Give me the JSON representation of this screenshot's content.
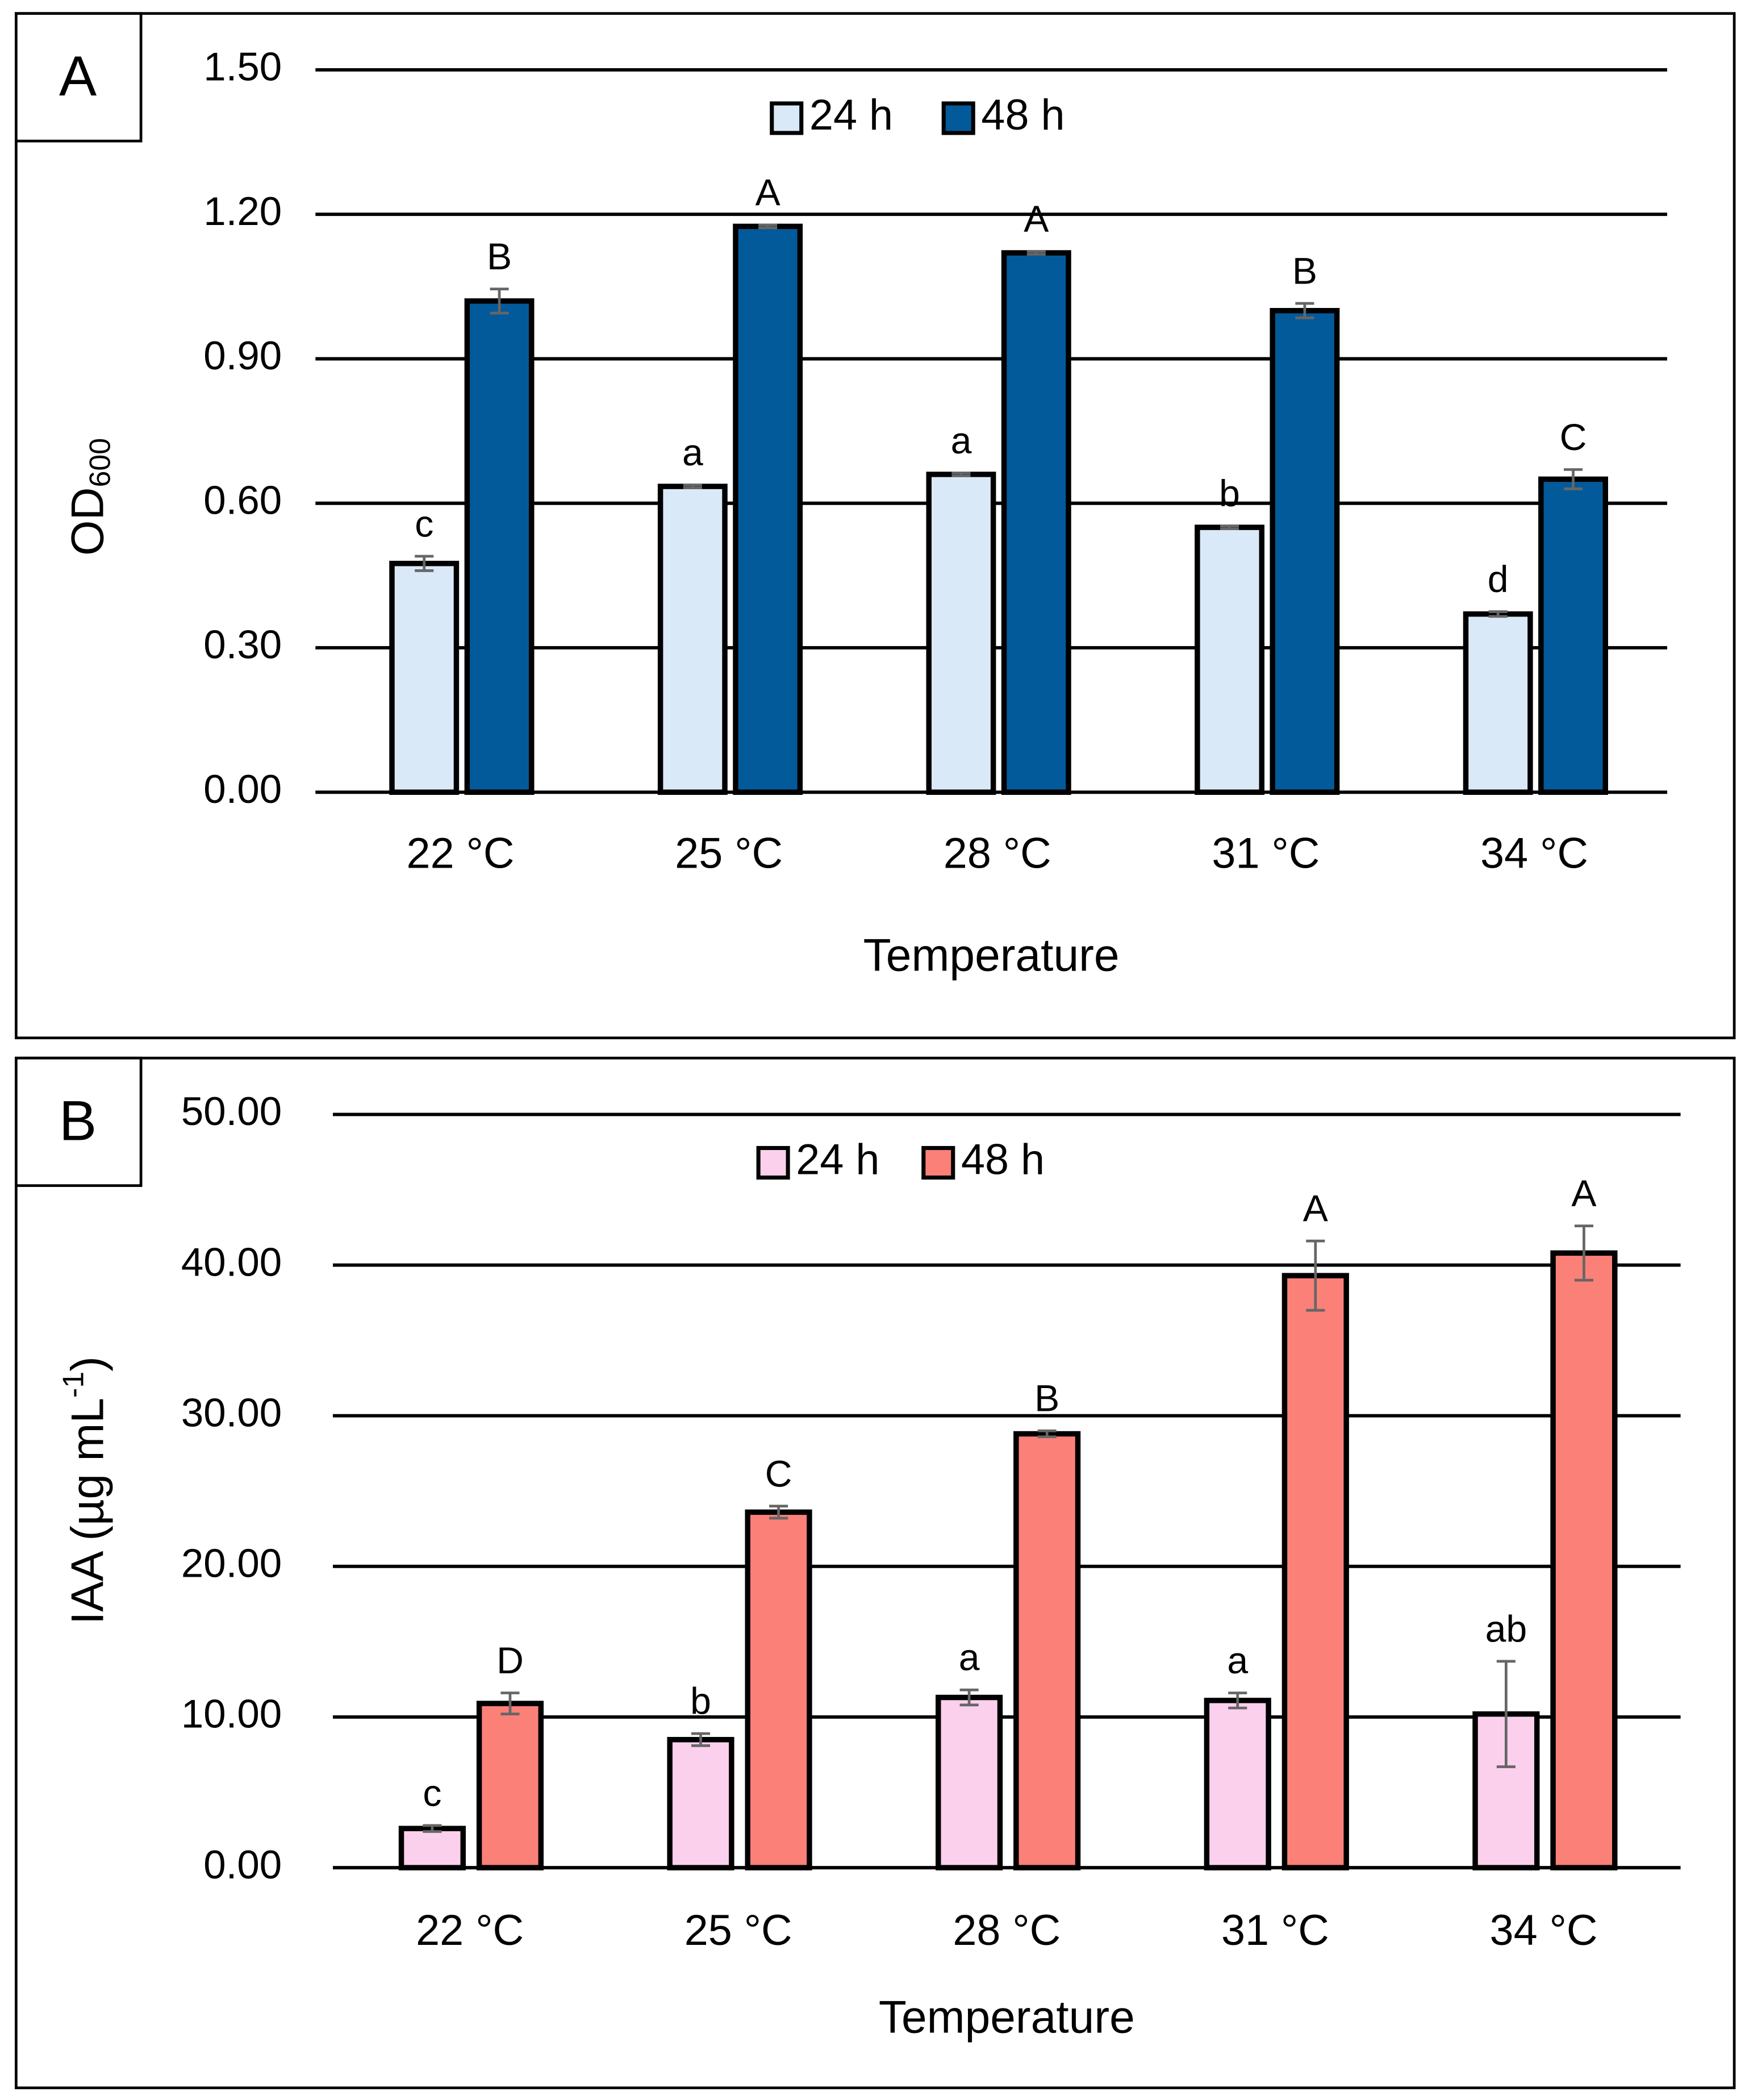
{
  "chart_data": [
    {
      "type": "bar",
      "panel": "A",
      "y_label": "OD",
      "y_label_subscript": "600",
      "x_label": "Temperature",
      "categories": [
        "22 °C",
        "25 °C",
        "28 °C",
        "31 °C",
        "34 °C"
      ],
      "series": [
        {
          "name": "24 h",
          "color": "#dae9f7",
          "values": [
            0.475,
            0.635,
            0.66,
            0.55,
            0.37
          ],
          "errors": [
            0.015,
            0.003,
            0.003,
            0.003,
            0.005
          ],
          "letters": [
            "c",
            "a",
            "a",
            "b",
            "d"
          ]
        },
        {
          "name": "48 h",
          "color": "#035a9a",
          "values": [
            1.02,
            1.175,
            1.12,
            1.0,
            0.65
          ],
          "errors": [
            0.025,
            0.003,
            0.003,
            0.015,
            0.02
          ],
          "letters": [
            "B",
            "A",
            "A",
            "B",
            "C"
          ]
        }
      ],
      "ylim": [
        0,
        1.5
      ],
      "yticks": [
        {
          "value": 0,
          "label": "0.00"
        },
        {
          "value": 0.3,
          "label": "0.30"
        },
        {
          "value": 0.6,
          "label": "0.60"
        },
        {
          "value": 0.9,
          "label": "0.90"
        },
        {
          "value": 1.2,
          "label": "1.20"
        },
        {
          "value": 1.5,
          "label": "1.50"
        }
      ],
      "grid": true,
      "legend": "top"
    },
    {
      "type": "bar",
      "panel": "B",
      "y_label": "IAA (µg mL",
      "y_label_superscript": "-1",
      "y_label_suffix": ")",
      "x_label": "Temperature",
      "categories": [
        "22 °C",
        "25 °C",
        "28 °C",
        "31 °C",
        "34 °C"
      ],
      "series": [
        {
          "name": "24 h",
          "color": "#fbd0ec",
          "values": [
            2.6,
            8.5,
            11.3,
            11.1,
            10.2
          ],
          "errors": [
            0.2,
            0.4,
            0.5,
            0.5,
            3.5
          ],
          "letters": [
            "c",
            "b",
            "a",
            "a",
            "ab"
          ]
        },
        {
          "name": "48 h",
          "color": "#fa8078",
          "values": [
            10.9,
            23.6,
            28.8,
            39.3,
            40.8
          ],
          "errors": [
            0.7,
            0.4,
            0.2,
            2.3,
            1.8
          ],
          "letters": [
            "D",
            "C",
            "B",
            "A",
            "A"
          ]
        }
      ],
      "ylim": [
        0,
        50
      ],
      "yticks": [
        {
          "value": 0,
          "label": "0.00"
        },
        {
          "value": 10,
          "label": "10.00"
        },
        {
          "value": 20,
          "label": "20.00"
        },
        {
          "value": 30,
          "label": "30.00"
        },
        {
          "value": 40,
          "label": "40.00"
        },
        {
          "value": 50,
          "label": "50.00"
        }
      ],
      "grid": true,
      "legend": "top"
    }
  ]
}
